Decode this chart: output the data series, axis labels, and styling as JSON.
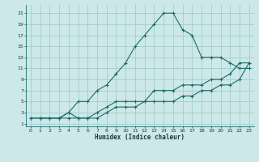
{
  "title": "",
  "xlabel": "Humidex (Indice chaleur)",
  "background_color": "#cce8e8",
  "grid_color": "#aacfcf",
  "line_color": "#1a6b6b",
  "xlim": [
    -0.5,
    23.5
  ],
  "ylim": [
    0.5,
    22.5
  ],
  "xticks": [
    0,
    1,
    2,
    3,
    4,
    5,
    6,
    7,
    8,
    9,
    10,
    11,
    12,
    13,
    14,
    15,
    16,
    17,
    18,
    19,
    20,
    21,
    22,
    23
  ],
  "yticks": [
    1,
    3,
    5,
    7,
    9,
    11,
    13,
    15,
    17,
    19,
    21
  ],
  "curve1_x": [
    1,
    2,
    3,
    4,
    5,
    6,
    7,
    8,
    9,
    10,
    11,
    12,
    13,
    14,
    15,
    16,
    17,
    18,
    19,
    20,
    21,
    22,
    23
  ],
  "curve1_y": [
    2,
    2,
    2,
    3,
    5,
    5,
    7,
    8,
    10,
    12,
    15,
    17,
    19,
    21,
    21,
    18,
    17,
    13,
    13,
    13,
    12,
    11,
    11
  ],
  "curve2_x": [
    0,
    1,
    2,
    3,
    4,
    5,
    6,
    7,
    8,
    9,
    10,
    11,
    12,
    13,
    14,
    15,
    16,
    17,
    18,
    19,
    20,
    21,
    22,
    23
  ],
  "curve2_y": [
    2,
    2,
    2,
    2,
    3,
    2,
    2,
    3,
    4,
    5,
    5,
    5,
    5,
    7,
    7,
    7,
    8,
    8,
    8,
    9,
    9,
    10,
    12,
    12
  ],
  "curve3_x": [
    0,
    1,
    2,
    3,
    4,
    5,
    6,
    7,
    8,
    9,
    10,
    11,
    12,
    13,
    14,
    15,
    16,
    17,
    18,
    19,
    20,
    21,
    22,
    23
  ],
  "curve3_y": [
    2,
    2,
    2,
    2,
    2,
    2,
    2,
    2,
    3,
    4,
    4,
    4,
    5,
    5,
    5,
    5,
    6,
    6,
    7,
    7,
    8,
    8,
    9,
    12
  ]
}
